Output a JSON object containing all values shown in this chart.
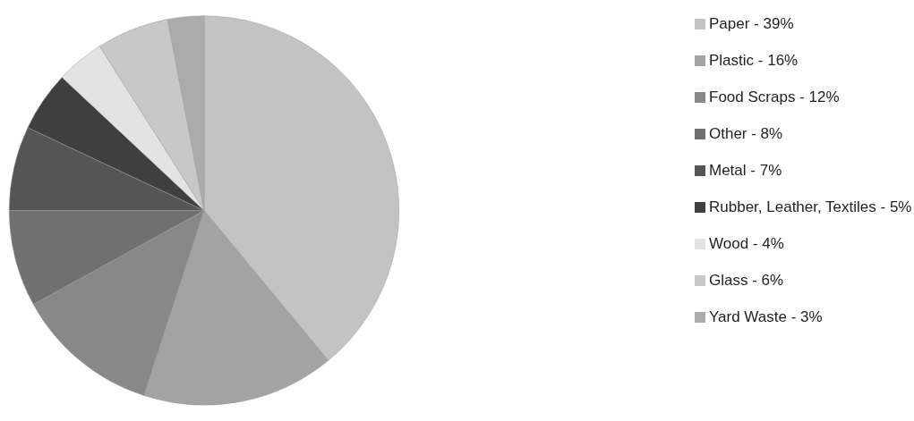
{
  "chart_data": {
    "type": "pie",
    "categories": [
      "Paper - 39%",
      "Plastic - 16%",
      "Food Scraps - 12%",
      "Other - 8%",
      "Metal - 7%",
      "Rubber, Leather, Textiles - 5%",
      "Wood - 4%",
      "Glass - 6%",
      "Yard Waste - 3%"
    ],
    "values": [
      39,
      16,
      12,
      8,
      7,
      5,
      4,
      6,
      3
    ],
    "colors": [
      "#c3c3c3",
      "#a3a3a3",
      "#888888",
      "#707070",
      "#555555",
      "#3f3f3f",
      "#e3e3e3",
      "#c8c8c8",
      "#ababab"
    ],
    "legend": "right"
  }
}
